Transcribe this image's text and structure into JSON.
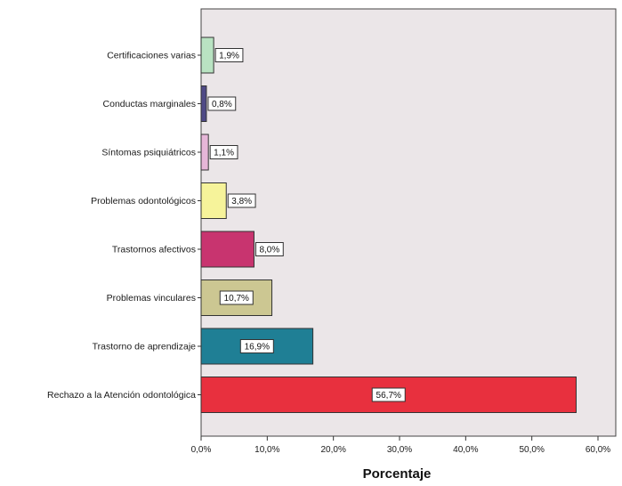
{
  "chart_data": {
    "type": "bar",
    "orientation": "horizontal",
    "categories": [
      "Certificaciones varias",
      "Conductas marginales",
      "Síntomas psiquiátricos",
      "Problemas odontológicos",
      "Trastornos afectivos",
      "Problemas vinculares",
      "Trastorno de aprendizaje",
      "Rechazo a la Atención odontológica"
    ],
    "values": [
      1.9,
      0.8,
      1.1,
      3.8,
      8.0,
      10.7,
      16.9,
      56.7
    ],
    "data_labels": [
      "1,9%",
      "0,8%",
      "1,1%",
      "3,8%",
      "8,0%",
      "10,7%",
      "16,9%",
      "56,7%"
    ],
    "colors": [
      "#b9e3c2",
      "#4f4a86",
      "#e6b6d8",
      "#f6f39a",
      "#c8346f",
      "#ccc792",
      "#1f7f95",
      "#e8303e"
    ],
    "xlabel": "Porcentaje",
    "ylabel": "",
    "title": "",
    "xlim": [
      0,
      60
    ],
    "xticks": [
      0,
      10,
      20,
      30,
      40,
      50,
      60
    ],
    "xtick_labels": [
      "0,0%",
      "10,0%",
      "20,0%",
      "30,0%",
      "40,0%",
      "50,0%",
      "60,0%"
    ],
    "plot_background": "#ebe6e8",
    "grid": false
  }
}
